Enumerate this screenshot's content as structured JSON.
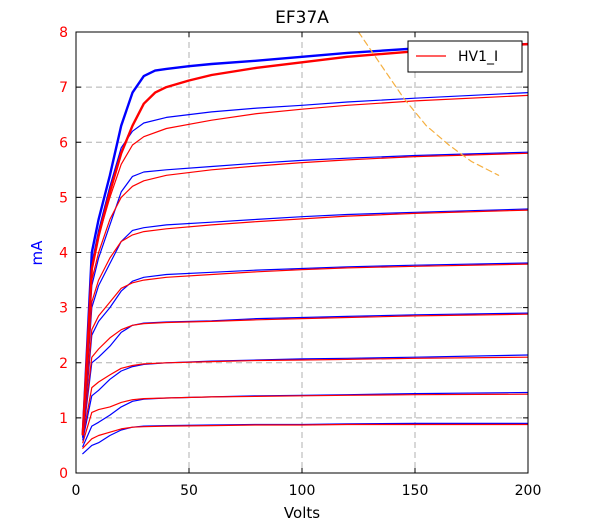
{
  "chart_data": {
    "type": "line",
    "title": "EF37A",
    "xlabel": "Volts",
    "ylabel": "mA",
    "xlim": [
      0,
      200
    ],
    "ylim": [
      0,
      8
    ],
    "xticks": [
      0,
      50,
      100,
      150,
      200
    ],
    "yticks": [
      0,
      1,
      2,
      3,
      4,
      5,
      6,
      7,
      8
    ],
    "grid": true,
    "legend": {
      "position": "top-right",
      "entries": [
        {
          "name": "HV1_I",
          "color": "#ff0000"
        }
      ]
    },
    "colors": {
      "measured": "#0000ff",
      "model": "#ff0000",
      "load_line": "#f5b041",
      "xlabel": "#000000",
      "ylabel": "#0000ff",
      "ytick": "#ff0000"
    },
    "series": [
      {
        "color": "#0000ff",
        "width": 1.2,
        "x": [
          3,
          7,
          10,
          15,
          20,
          25,
          30,
          40,
          60,
          80,
          100,
          120,
          150,
          200
        ],
        "y": [
          0.35,
          0.5,
          0.55,
          0.68,
          0.78,
          0.83,
          0.85,
          0.86,
          0.87,
          0.88,
          0.88,
          0.89,
          0.9,
          0.9
        ]
      },
      {
        "color": "#ff0000",
        "width": 1.2,
        "x": [
          3,
          7,
          10,
          15,
          20,
          25,
          30,
          40,
          60,
          80,
          100,
          120,
          150,
          200
        ],
        "y": [
          0.45,
          0.62,
          0.68,
          0.74,
          0.8,
          0.83,
          0.84,
          0.85,
          0.86,
          0.87,
          0.87,
          0.88,
          0.88,
          0.88
        ]
      },
      {
        "color": "#0000ff",
        "width": 1.2,
        "x": [
          3,
          7,
          10,
          15,
          20,
          25,
          30,
          40,
          60,
          80,
          100,
          120,
          150,
          200
        ],
        "y": [
          0.48,
          0.85,
          0.92,
          1.05,
          1.2,
          1.3,
          1.34,
          1.36,
          1.38,
          1.4,
          1.41,
          1.42,
          1.44,
          1.46
        ]
      },
      {
        "color": "#ff0000",
        "width": 1.2,
        "x": [
          3,
          7,
          10,
          15,
          20,
          25,
          30,
          40,
          60,
          80,
          100,
          120,
          150,
          200
        ],
        "y": [
          0.55,
          1.1,
          1.15,
          1.2,
          1.28,
          1.33,
          1.35,
          1.36,
          1.38,
          1.39,
          1.4,
          1.41,
          1.42,
          1.43
        ]
      },
      {
        "color": "#0000ff",
        "width": 1.2,
        "x": [
          3,
          7,
          10,
          15,
          20,
          25,
          30,
          40,
          60,
          80,
          100,
          120,
          150,
          200
        ],
        "y": [
          0.6,
          1.4,
          1.5,
          1.7,
          1.85,
          1.93,
          1.97,
          2.0,
          2.03,
          2.05,
          2.07,
          2.08,
          2.1,
          2.14
        ]
      },
      {
        "color": "#ff0000",
        "width": 1.2,
        "x": [
          3,
          7,
          10,
          15,
          20,
          25,
          30,
          40,
          60,
          80,
          100,
          120,
          150,
          200
        ],
        "y": [
          0.65,
          1.55,
          1.65,
          1.78,
          1.9,
          1.95,
          1.98,
          2.0,
          2.02,
          2.04,
          2.05,
          2.06,
          2.08,
          2.1
        ]
      },
      {
        "color": "#0000ff",
        "width": 1.2,
        "x": [
          3,
          7,
          10,
          15,
          20,
          25,
          30,
          40,
          60,
          80,
          100,
          120,
          150,
          200
        ],
        "y": [
          0.65,
          2.0,
          2.1,
          2.3,
          2.55,
          2.68,
          2.72,
          2.74,
          2.76,
          2.8,
          2.82,
          2.84,
          2.87,
          2.9
        ]
      },
      {
        "color": "#ff0000",
        "width": 1.2,
        "x": [
          3,
          7,
          10,
          15,
          20,
          25,
          30,
          40,
          60,
          80,
          100,
          120,
          150,
          200
        ],
        "y": [
          0.7,
          2.1,
          2.25,
          2.45,
          2.6,
          2.68,
          2.71,
          2.73,
          2.75,
          2.78,
          2.8,
          2.82,
          2.85,
          2.88
        ]
      },
      {
        "color": "#0000ff",
        "width": 1.2,
        "x": [
          3,
          7,
          10,
          15,
          20,
          25,
          30,
          40,
          60,
          80,
          100,
          120,
          150,
          200
        ],
        "y": [
          0.65,
          2.5,
          2.75,
          3.0,
          3.3,
          3.48,
          3.55,
          3.6,
          3.64,
          3.68,
          3.71,
          3.74,
          3.77,
          3.81
        ]
      },
      {
        "color": "#ff0000",
        "width": 1.2,
        "x": [
          3,
          7,
          10,
          15,
          20,
          25,
          30,
          40,
          60,
          80,
          100,
          120,
          150,
          200
        ],
        "y": [
          0.7,
          2.6,
          2.85,
          3.1,
          3.35,
          3.45,
          3.5,
          3.55,
          3.6,
          3.65,
          3.69,
          3.72,
          3.75,
          3.79
        ]
      },
      {
        "color": "#0000ff",
        "width": 1.2,
        "x": [
          3,
          7,
          10,
          15,
          20,
          25,
          30,
          40,
          60,
          80,
          100,
          120,
          150,
          200
        ],
        "y": [
          0.65,
          3.0,
          3.4,
          3.8,
          4.2,
          4.4,
          4.45,
          4.5,
          4.55,
          4.6,
          4.65,
          4.69,
          4.73,
          4.79
        ]
      },
      {
        "color": "#ff0000",
        "width": 1.2,
        "x": [
          3,
          7,
          10,
          15,
          20,
          25,
          30,
          40,
          60,
          80,
          100,
          120,
          150,
          200
        ],
        "y": [
          0.7,
          3.1,
          3.5,
          3.9,
          4.2,
          4.32,
          4.38,
          4.43,
          4.5,
          4.56,
          4.61,
          4.66,
          4.71,
          4.77
        ]
      },
      {
        "color": "#0000ff",
        "width": 1.2,
        "x": [
          3,
          7,
          10,
          15,
          20,
          25,
          30,
          40,
          60,
          80,
          100,
          120,
          150,
          200
        ],
        "y": [
          0.7,
          3.4,
          3.9,
          4.5,
          5.1,
          5.38,
          5.46,
          5.5,
          5.56,
          5.62,
          5.67,
          5.71,
          5.76,
          5.82
        ]
      },
      {
        "color": "#ff0000",
        "width": 1.2,
        "x": [
          3,
          7,
          10,
          15,
          20,
          25,
          30,
          40,
          60,
          80,
          100,
          120,
          150,
          200
        ],
        "y": [
          0.7,
          3.5,
          4.0,
          4.6,
          5.0,
          5.2,
          5.3,
          5.4,
          5.5,
          5.57,
          5.63,
          5.68,
          5.74,
          5.8
        ]
      },
      {
        "color": "#0000ff",
        "width": 1.2,
        "x": [
          3,
          7,
          10,
          15,
          20,
          25,
          30,
          40,
          60,
          80,
          100,
          120,
          150,
          200
        ],
        "y": [
          0.7,
          3.8,
          4.4,
          5.2,
          5.9,
          6.2,
          6.35,
          6.45,
          6.55,
          6.62,
          6.67,
          6.73,
          6.8,
          6.9
        ]
      },
      {
        "color": "#ff0000",
        "width": 1.2,
        "x": [
          3,
          7,
          10,
          15,
          20,
          25,
          30,
          40,
          60,
          80,
          100,
          120,
          150,
          200
        ],
        "y": [
          0.7,
          3.7,
          4.3,
          5.0,
          5.6,
          5.95,
          6.1,
          6.25,
          6.4,
          6.52,
          6.6,
          6.67,
          6.75,
          6.85
        ]
      },
      {
        "color": "#0000ff",
        "width": 2.4,
        "x": [
          3,
          7,
          10,
          15,
          20,
          25,
          30,
          35,
          40,
          50,
          60,
          80,
          100,
          120,
          150,
          200
        ],
        "y": [
          0.7,
          4.0,
          4.6,
          5.4,
          6.3,
          6.9,
          7.2,
          7.3,
          7.33,
          7.38,
          7.42,
          7.48,
          7.55,
          7.62,
          7.7,
          7.78
        ]
      },
      {
        "color": "#ff0000",
        "width": 2.4,
        "x": [
          3,
          7,
          10,
          15,
          20,
          25,
          30,
          35,
          40,
          50,
          60,
          80,
          100,
          120,
          150,
          200
        ],
        "y": [
          0.7,
          3.7,
          4.3,
          5.1,
          5.8,
          6.3,
          6.7,
          6.9,
          7.0,
          7.12,
          7.22,
          7.35,
          7.45,
          7.55,
          7.65,
          7.78
        ]
      },
      {
        "color": "#f5b041",
        "width": 1.2,
        "dash": true,
        "x": [
          125,
          135,
          145,
          155,
          165,
          175,
          187
        ],
        "y": [
          8.0,
          7.4,
          6.8,
          6.3,
          5.95,
          5.65,
          5.4
        ]
      }
    ]
  }
}
